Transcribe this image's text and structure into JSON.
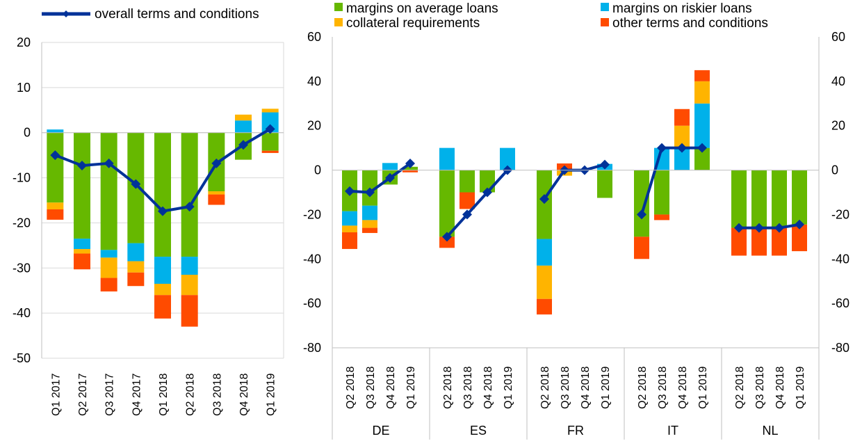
{
  "colors": {
    "margins_average": "#66b800",
    "margins_riskier": "#00b1ea",
    "collateral": "#ffb400",
    "other": "#ff4b00",
    "overall": "#003299",
    "grid": "#d9d9d9",
    "axis": "#bfbfbf"
  },
  "legend": {
    "overall": "overall terms and conditions",
    "margins_average": "margins on average loans",
    "margins_riskier": "margins on riskier loans",
    "collateral": "collateral requirements",
    "other": "other terms and conditions"
  },
  "chart_data": [
    {
      "type": "bar",
      "stacked": true,
      "with_line": true,
      "ylim": [
        -50,
        20
      ],
      "yticks": [
        "20",
        "10",
        "0",
        "-10",
        "-20",
        "-30",
        "-40",
        "-50"
      ],
      "categories": [
        "Q1 2017",
        "Q2 2017",
        "Q3 2017",
        "Q4 2017",
        "Q1 2018",
        "Q2 2018",
        "Q3 2018",
        "Q4 2018",
        "Q1 2019"
      ],
      "series": [
        {
          "name": "margins on average loans",
          "values": [
            -15.5,
            -23.5,
            -26,
            -24.5,
            -27.5,
            -27.5,
            -13,
            -6,
            -4
          ]
        },
        {
          "name": "margins on riskier loans",
          "values": [
            0.7,
            -2.3,
            -1.7,
            -4,
            -6,
            -4,
            0,
            2.7,
            4.5
          ]
        },
        {
          "name": "collateral requirements",
          "values": [
            -1.5,
            -1,
            -4.5,
            -2.5,
            -2.5,
            -4.5,
            -0.7,
            1.3,
            0.8
          ]
        },
        {
          "name": "other terms and conditions",
          "values": [
            -2.3,
            -3.5,
            -3,
            -3,
            -5.2,
            -7,
            -2.3,
            0,
            -0.5
          ]
        }
      ],
      "line": {
        "name": "overall terms and conditions",
        "values": [
          -5,
          -7.3,
          -6.8,
          -11.4,
          -17.4,
          -16.4,
          -6.8,
          -2.7,
          0.8
        ]
      }
    },
    {
      "type": "bar",
      "stacked": true,
      "with_line": true,
      "ylim": [
        -80,
        60
      ],
      "yticks": [
        "60",
        "40",
        "20",
        "0",
        "-20",
        "-40",
        "-60",
        "-80"
      ],
      "groups": [
        {
          "name": "DE",
          "categories": [
            "Q2 2018",
            "Q3 2018",
            "Q4 2018",
            "Q1 2019"
          ],
          "margins_average": [
            -18.5,
            -16,
            -6.5,
            1.5
          ],
          "margins_riskier": [
            -6.5,
            -6.5,
            3.2,
            0
          ],
          "collateral": [
            -3,
            -3.5,
            0,
            0
          ],
          "other": [
            -7.5,
            -2.3,
            0,
            -1
          ],
          "overall": [
            -9.5,
            -10,
            -3.5,
            3
          ]
        },
        {
          "name": "ES",
          "categories": [
            "Q2 2018",
            "Q3 2018",
            "Q4 2018",
            "Q1 2019"
          ],
          "margins_average": [
            -30,
            -10,
            -10,
            0
          ],
          "margins_riskier": [
            10,
            0,
            0,
            10
          ],
          "collateral": [
            0,
            0,
            0,
            0
          ],
          "other": [
            -5,
            -7.5,
            0,
            0
          ],
          "overall": [
            -30,
            -20,
            -10,
            0
          ]
        },
        {
          "name": "FR",
          "categories": [
            "Q2 2018",
            "Q3 2018",
            "Q4 2018",
            "Q1 2019"
          ],
          "margins_average": [
            -31,
            0,
            0,
            -12.5
          ],
          "margins_riskier": [
            -12,
            0,
            0,
            2.8
          ],
          "collateral": [
            -15,
            -2.5,
            0,
            0
          ],
          "other": [
            -7,
            3,
            0,
            0
          ],
          "overall": [
            -13,
            0,
            0,
            2.5
          ]
        },
        {
          "name": "IT",
          "categories": [
            "Q2 2018",
            "Q3 2018",
            "Q4 2018",
            "Q1 2019"
          ],
          "margins_average": [
            -30,
            -20,
            0,
            10
          ],
          "margins_riskier": [
            0,
            10,
            10,
            20
          ],
          "collateral": [
            0,
            0,
            10,
            10
          ],
          "other": [
            -10,
            -2.5,
            7.5,
            5
          ],
          "overall": [
            -20,
            10,
            10,
            10
          ]
        },
        {
          "name": "NL",
          "categories": [
            "Q2 2018",
            "Q3 2018",
            "Q4 2018",
            "Q1 2019"
          ],
          "margins_average": [
            -26,
            -26,
            -26,
            -24.5
          ],
          "margins_riskier": [
            0,
            0,
            0,
            0
          ],
          "collateral": [
            0,
            0,
            0,
            0
          ],
          "other": [
            -12.5,
            -12.5,
            -12.5,
            -12
          ],
          "overall": [
            -26,
            -26,
            -26,
            -24.5
          ]
        }
      ]
    }
  ]
}
